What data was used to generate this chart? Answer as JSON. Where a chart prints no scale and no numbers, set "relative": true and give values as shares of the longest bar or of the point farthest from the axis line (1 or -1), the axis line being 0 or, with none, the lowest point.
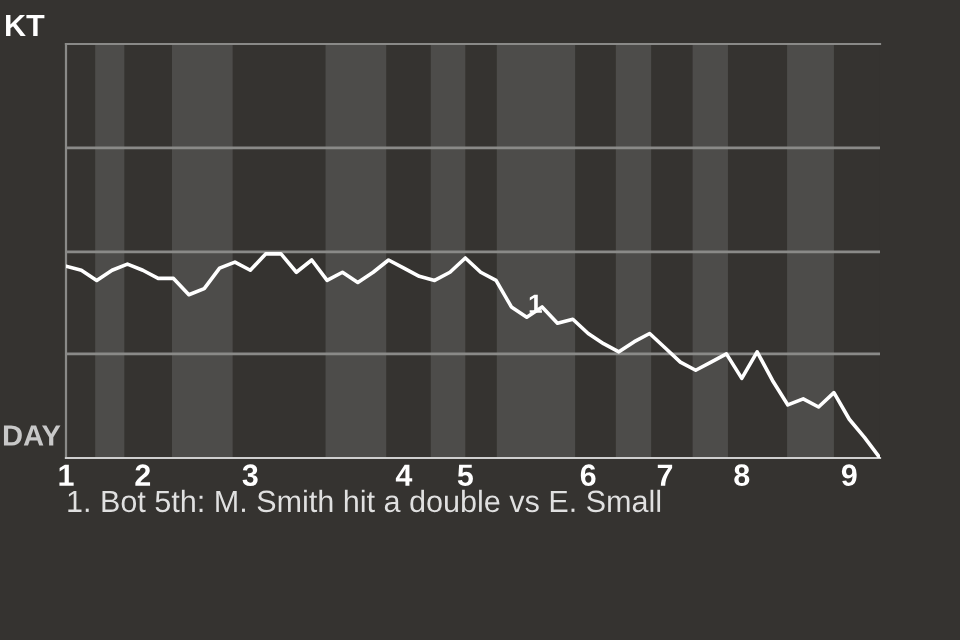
{
  "chart_data": {
    "type": "line",
    "relative": true,
    "tick_labels": "x",
    "marker": "none",
    "line_style": "solid",
    "categories": [
      "1",
      null,
      null,
      null,
      null,
      "2",
      null,
      null,
      null,
      null,
      null,
      null,
      "3",
      null,
      null,
      null,
      null,
      null,
      null,
      null,
      null,
      null,
      "4",
      null,
      null,
      null,
      "5",
      null,
      null,
      null,
      null,
      null,
      null,
      null,
      "6",
      null,
      null,
      null,
      null,
      "7",
      null,
      null,
      null,
      null,
      "8",
      null,
      null,
      null,
      null,
      null,
      null,
      "9",
      null,
      null
    ],
    "series": [
      {
        "color": "#ffffff",
        "values": [
          0.94,
          0.92,
          0.87,
          0.92,
          0.95,
          0.92,
          0.88,
          0.88,
          0.8,
          0.83,
          0.93,
          0.96,
          0.92,
          1,
          1,
          0.91,
          0.97,
          0.87,
          0.91,
          0.86,
          0.91,
          0.97,
          0.93,
          0.89,
          0.87,
          0.91,
          0.98,
          0.91,
          0.87,
          0.74,
          0.69,
          0.74,
          0.66,
          0.68,
          0.61,
          0.56,
          0.52,
          0.57,
          0.61,
          0.54,
          0.47,
          0.43,
          0.47,
          0.51,
          0.39,
          0.52,
          0.38,
          0.26,
          0.29,
          0.25,
          0.32,
          0.19,
          0.1,
          0
        ]
      }
    ],
    "ref_lines": [
      {
        "axis": "y",
        "value": 0.51,
        "color": "#8a8a88"
      },
      {
        "axis": "y",
        "value": 1.01,
        "color": "#8a8a88"
      },
      {
        "axis": "y",
        "value": 1.52,
        "color": "#8a8a88"
      }
    ],
    "annotations": [
      "KT",
      "DAY",
      "1",
      "1. Bot 5th: M. Smith hit a double vs E. Small"
    ]
  }
}
